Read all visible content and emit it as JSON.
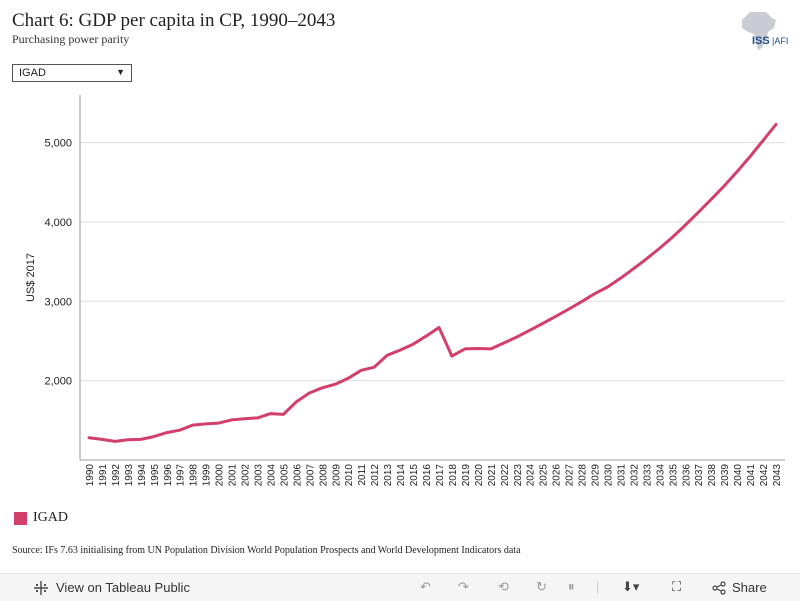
{
  "header": {
    "title": "Chart 6: GDP per capita in CP, 1990–2043",
    "subtitle": "Purchasing power parity",
    "logo_text": "ISS|AFI"
  },
  "filter": {
    "selected": "IGAD"
  },
  "colors": {
    "series": "#d13f6a",
    "grid": "#dddddd"
  },
  "chart_data": {
    "type": "line",
    "ylabel": "US$ 2017",
    "xlabel": "",
    "ylim": [
      1000,
      5600
    ],
    "yticks": [
      2000,
      3000,
      4000,
      5000
    ],
    "ytick_labels": [
      "2,000",
      "3,000",
      "4,000",
      "5,000"
    ],
    "grid": true,
    "legend_position": "bottom-left",
    "x": [
      1990,
      1991,
      1992,
      1993,
      1994,
      1995,
      1996,
      1997,
      1998,
      1999,
      2000,
      2001,
      2002,
      2003,
      2004,
      2005,
      2006,
      2007,
      2008,
      2009,
      2010,
      2011,
      2012,
      2013,
      2014,
      2015,
      2016,
      2017,
      2018,
      2019,
      2020,
      2021,
      2022,
      2023,
      2024,
      2025,
      2026,
      2027,
      2028,
      2029,
      2030,
      2031,
      2032,
      2033,
      2034,
      2035,
      2036,
      2037,
      2038,
      2039,
      2040,
      2041,
      2042,
      2043
    ],
    "series": [
      {
        "name": "IGAD",
        "values": [
          1280,
          1260,
          1235,
          1255,
          1260,
          1295,
          1345,
          1375,
          1440,
          1455,
          1465,
          1505,
          1520,
          1530,
          1585,
          1575,
          1735,
          1845,
          1910,
          1955,
          2030,
          2130,
          2170,
          2320,
          2385,
          2460,
          2560,
          2670,
          2310,
          2400,
          2405,
          2400,
          2475,
          2550,
          2635,
          2720,
          2810,
          2900,
          2995,
          3095,
          3180,
          3290,
          3410,
          3535,
          3665,
          3805,
          3960,
          4120,
          4285,
          4455,
          4635,
          4825,
          5025,
          5230
        ]
      }
    ]
  },
  "legend": {
    "label": "IGAD"
  },
  "source": "Source: IFs 7.63 initialising from UN Population Division World Population Prospects and World Development Indicators data",
  "footer": {
    "tableau_link": "View on Tableau Public",
    "share": "Share"
  }
}
